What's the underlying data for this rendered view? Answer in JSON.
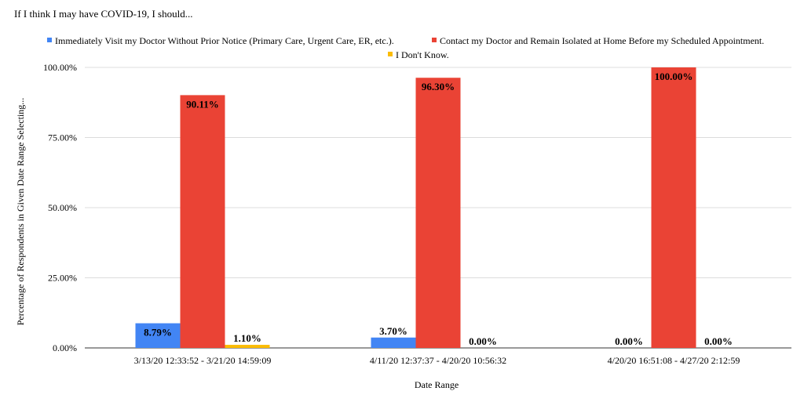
{
  "chart_data": {
    "type": "bar",
    "title": "If I think I may have COVID-19, I should...",
    "xlabel": "Date Range",
    "ylabel": "Percentage of Respondents in Given Date Range Selecting...",
    "ylim": [
      0,
      100
    ],
    "yticks": [
      "0.00%",
      "25.00%",
      "50.00%",
      "75.00%",
      "100.00%"
    ],
    "legend_position": "top",
    "categories": [
      "3/13/20  12:33:52 - 3/21/20  14:59:09",
      "4/11/20  12:37:37 - 4/20/20  10:56:32",
      "4/20/20  16:51:08 - 4/27/20  2:12:59"
    ],
    "series": [
      {
        "name": "Immediately Visit my Doctor Without Prior Notice (Primary Care, Urgent Care, ER, etc.).",
        "color": "#4285f4",
        "values": [
          8.79,
          3.7,
          0.0
        ],
        "labels": [
          "8.79%",
          "3.70%",
          "0.00%"
        ]
      },
      {
        "name": "Contact my Doctor and Remain Isolated at Home Before my Scheduled Appointment.",
        "color": "#ea4335",
        "values": [
          90.11,
          96.3,
          100.0
        ],
        "labels": [
          "90.11%",
          "96.30%",
          "100.00%"
        ]
      },
      {
        "name": "I Don't Know.",
        "color": "#fbbc04",
        "values": [
          1.1,
          0.0,
          0.0
        ],
        "labels": [
          "1.10%",
          "0.00%",
          "0.00%"
        ]
      }
    ]
  }
}
